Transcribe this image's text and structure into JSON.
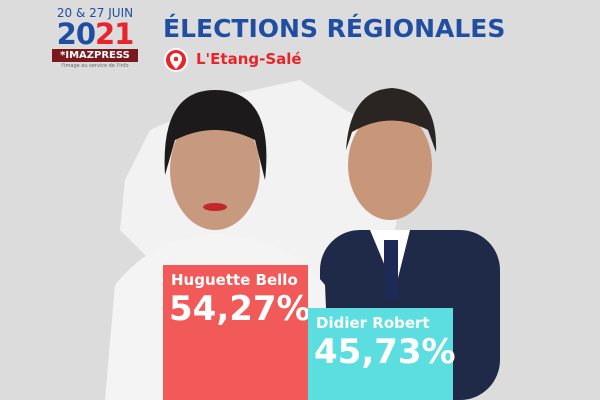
{
  "header": {
    "dates": "20 & 27 JUIN",
    "year_part1": "20",
    "year_part2": "21",
    "brand": "*IMAZPRESS",
    "tagline": "l'image au service de l'info",
    "title": "ÉLECTIONS RÉGIONALES",
    "location": "L'Etang-Salé",
    "location_icon": "map-pin-icon"
  },
  "colors": {
    "blue": "#1f4ea3",
    "red": "#e8242a",
    "bar1": "#f25a5a",
    "bar2": "#5cdde0"
  },
  "chart_data": {
    "type": "bar",
    "categories": [
      "Huguette Bello",
      "Didier Robert"
    ],
    "values": [
      54.27,
      45.73
    ],
    "labels": [
      "54,27%",
      "45,73%"
    ],
    "ylim": [
      0,
      100
    ]
  }
}
